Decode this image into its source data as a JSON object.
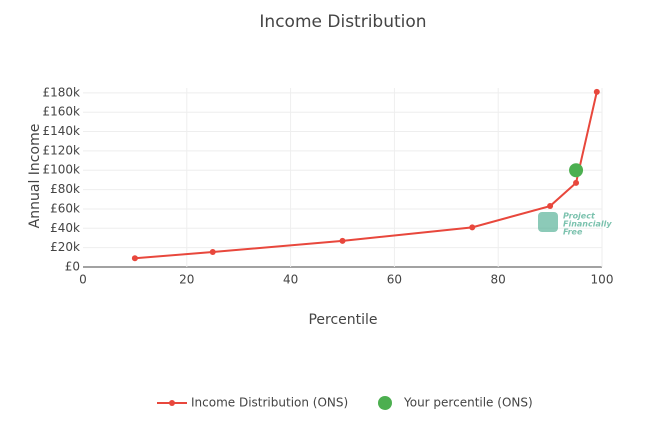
{
  "chart_data": {
    "type": "line",
    "title": "Income Distribution",
    "xlabel": "Percentile",
    "ylabel": "Annual Income",
    "xlim": [
      0,
      100
    ],
    "xticks": [
      0,
      20,
      40,
      60,
      80,
      100
    ],
    "ylim": [
      0,
      185000
    ],
    "yticks": [
      {
        "value": 0,
        "label": "£0"
      },
      {
        "value": 20000,
        "label": "£20k"
      },
      {
        "value": 40000,
        "label": "£40k"
      },
      {
        "value": 60000,
        "label": "£60k"
      },
      {
        "value": 80000,
        "label": "£80k"
      },
      {
        "value": 100000,
        "label": "£100k"
      },
      {
        "value": 120000,
        "label": "£120k"
      },
      {
        "value": 140000,
        "label": "£140k"
      },
      {
        "value": 160000,
        "label": "£160k"
      },
      {
        "value": 180000,
        "label": "£180k"
      }
    ],
    "grid": true,
    "watermark": [
      "Project",
      "Financially",
      "Free"
    ],
    "series": [
      {
        "name": "Income Distribution (ONS)",
        "color": "#e8473c",
        "mode": "lines+markers",
        "x": [
          10,
          25,
          50,
          75,
          90,
          95,
          99
        ],
        "values": [
          9000,
          15500,
          27000,
          41000,
          63000,
          87000,
          181000
        ]
      },
      {
        "name": "Your percentile (ONS)",
        "color": "#4caf50",
        "mode": "markers",
        "x": [
          95
        ],
        "values": [
          100000
        ]
      }
    ]
  }
}
